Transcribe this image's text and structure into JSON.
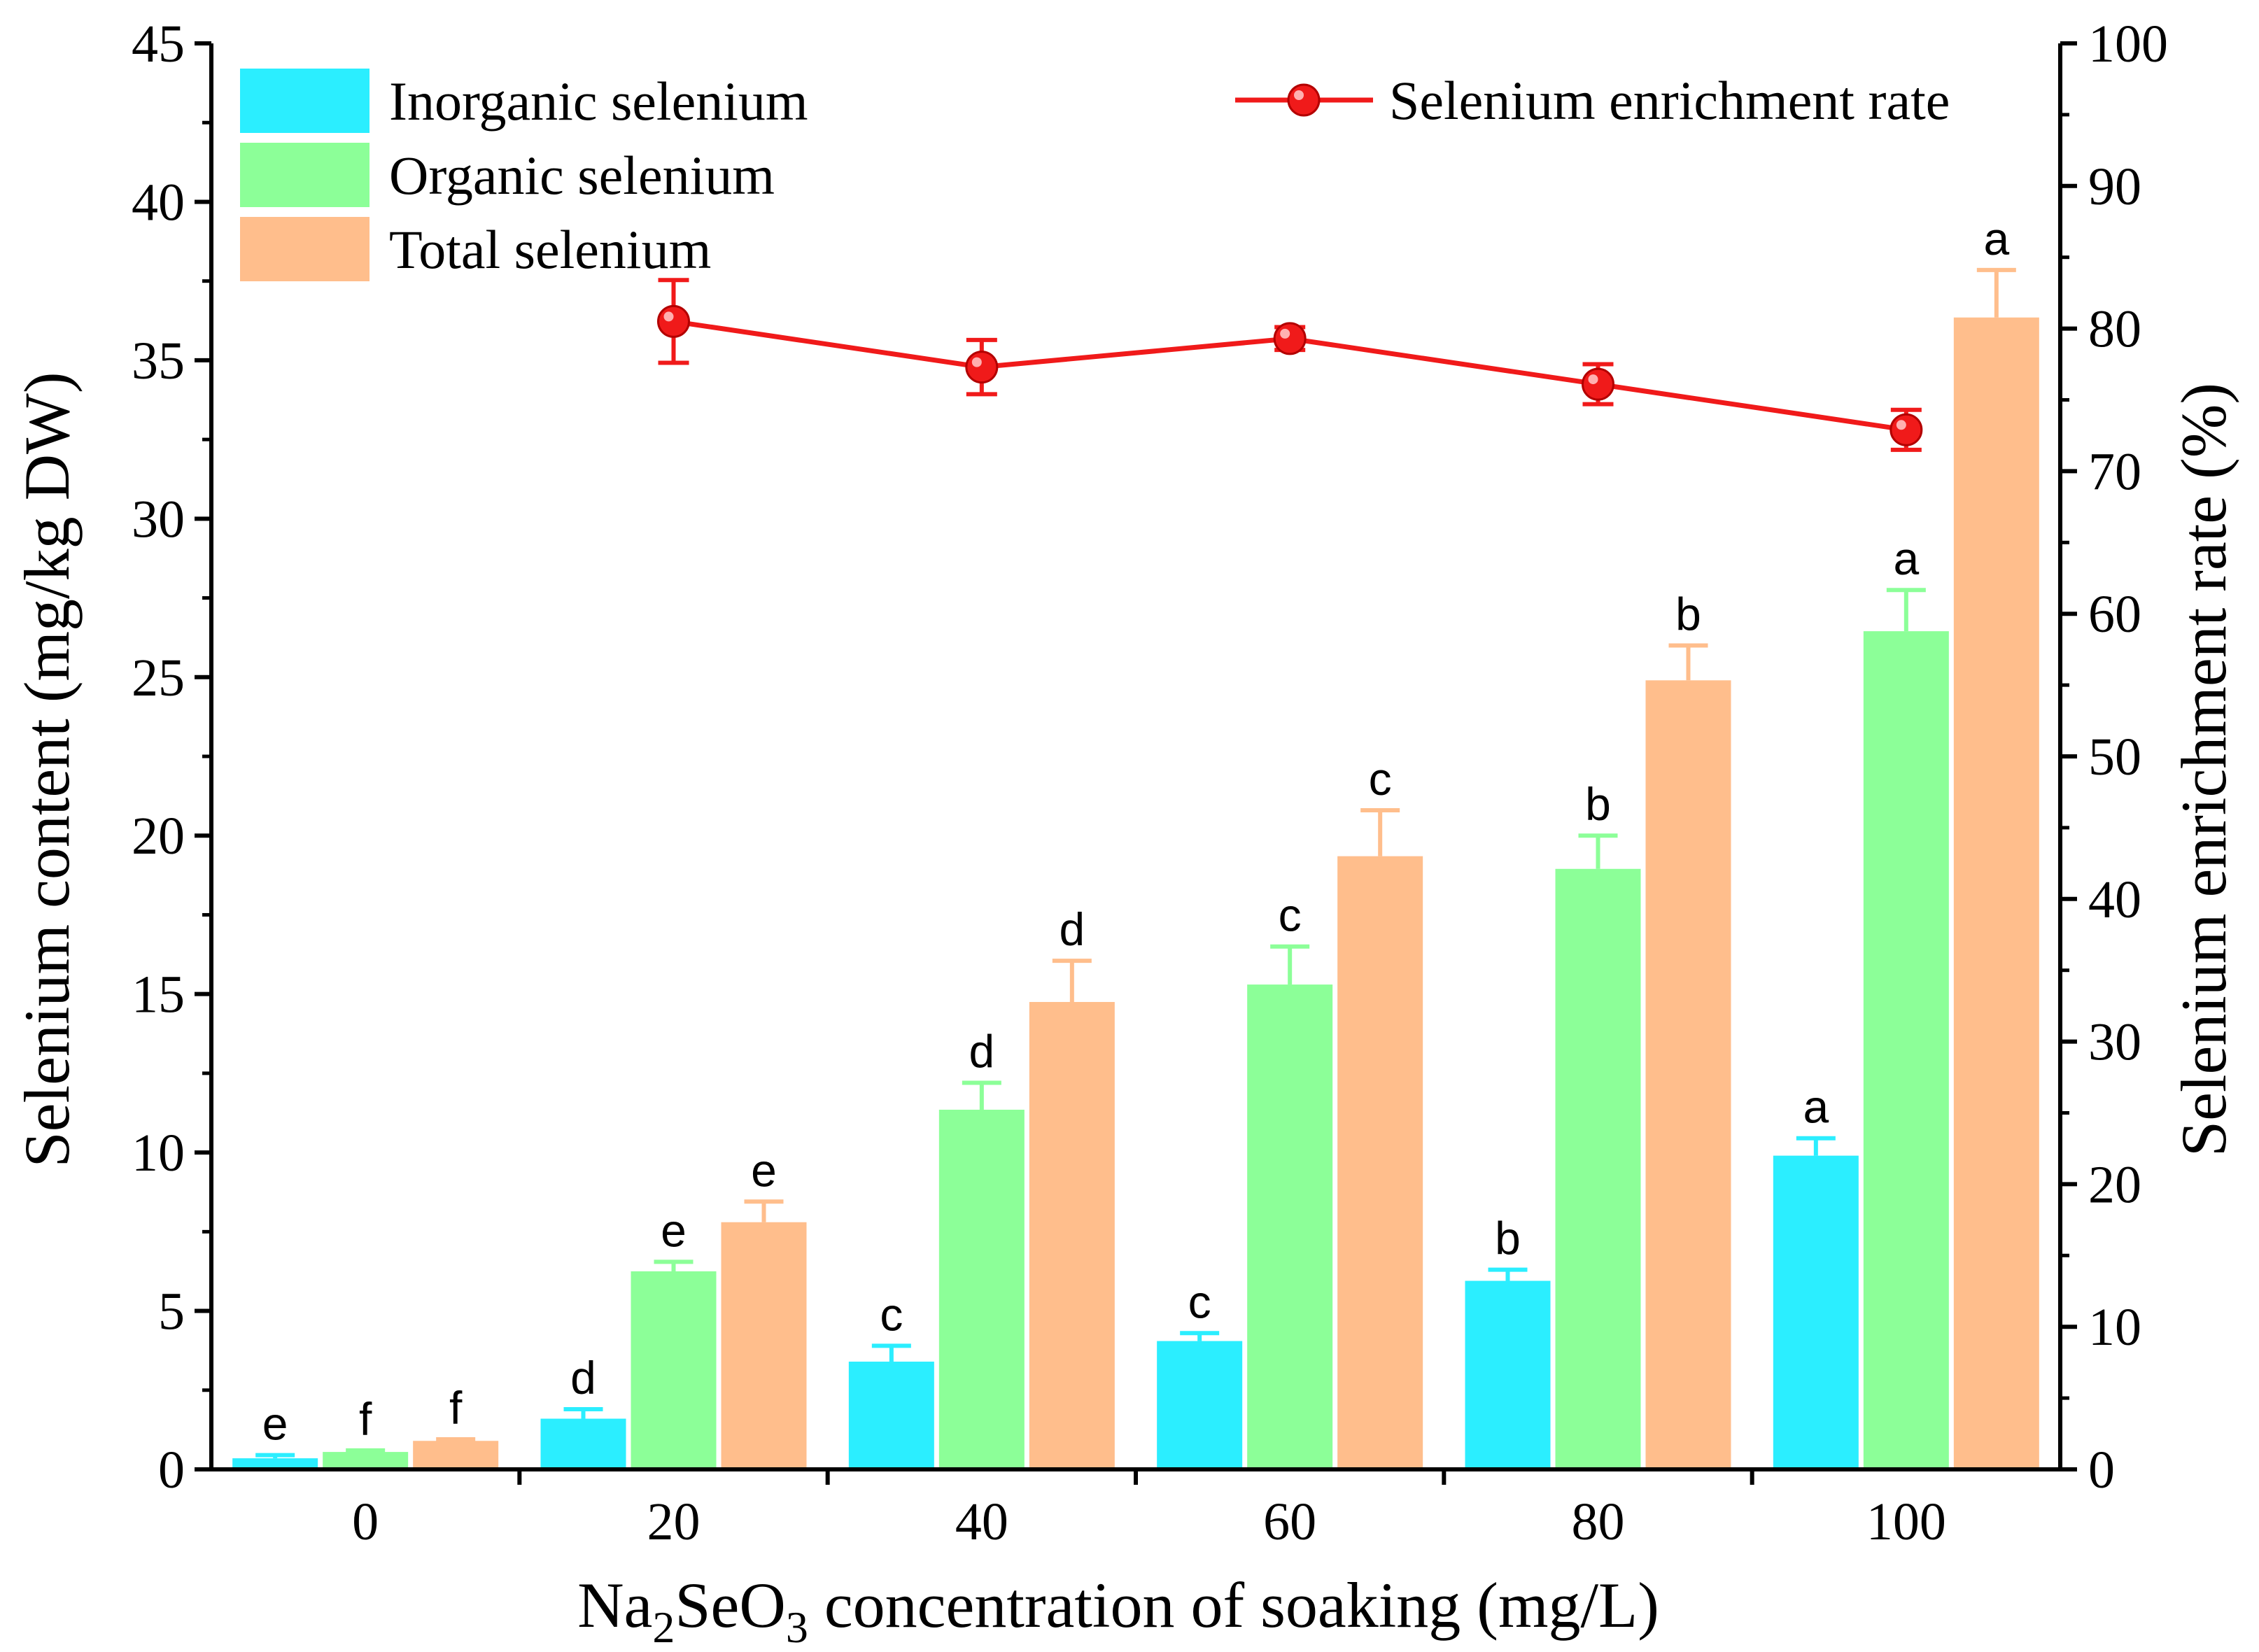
{
  "chart_data": {
    "type": "bar",
    "categories": [
      "0",
      "20",
      "40",
      "60",
      "80",
      "100"
    ],
    "xlabel_parts": [
      "Na",
      "2",
      "SeO",
      "3",
      " concentration of soaking (mg/L)"
    ],
    "ylabel": "Selenium content (mg/kg DW)",
    "y2label": "Selenium enrichment rate (%)",
    "ylim": [
      0,
      45
    ],
    "yticks": [
      0,
      5,
      10,
      15,
      20,
      25,
      30,
      35,
      40,
      45
    ],
    "y2lim": [
      0,
      100
    ],
    "y2ticks": [
      0,
      10,
      20,
      30,
      40,
      50,
      60,
      70,
      80,
      90,
      100
    ],
    "grid": false,
    "legend_position": "top-left and top-right",
    "series": [
      {
        "name": "Inorganic selenium",
        "color": "#2BEEFF",
        "values": [
          0.35,
          1.6,
          3.4,
          4.05,
          5.95,
          9.9
        ],
        "errors": [
          0.1,
          0.3,
          0.5,
          0.25,
          0.35,
          0.55
        ],
        "letters": [
          "e",
          "d",
          "c",
          "c",
          "b",
          "a"
        ]
      },
      {
        "name": "Organic selenium",
        "color": "#8CFF98",
        "values": [
          0.55,
          6.25,
          11.35,
          15.3,
          18.95,
          26.45
        ],
        "errors": [
          0.05,
          0.3,
          0.85,
          1.2,
          1.05,
          1.3
        ],
        "letters": [
          "f",
          "e",
          "d",
          "c",
          "b",
          "a"
        ]
      },
      {
        "name": "Total selenium",
        "color": "#FFBE8C",
        "values": [
          0.9,
          7.8,
          14.75,
          19.35,
          24.9,
          36.35
        ],
        "errors": [
          0.05,
          0.65,
          1.3,
          1.45,
          1.1,
          1.5
        ],
        "letters": [
          "f",
          "e",
          "d",
          "c",
          "b",
          "a"
        ]
      }
    ],
    "line_series": {
      "name": "Selenium enrichment rate",
      "color": "#F01A1A",
      "axis": "right",
      "x": [
        "20",
        "40",
        "60",
        "80",
        "100"
      ],
      "values": [
        80.5,
        77.3,
        79.3,
        76.1,
        72.9
      ],
      "errors": [
        2.9,
        1.9,
        0.8,
        1.4,
        1.4
      ]
    }
  }
}
